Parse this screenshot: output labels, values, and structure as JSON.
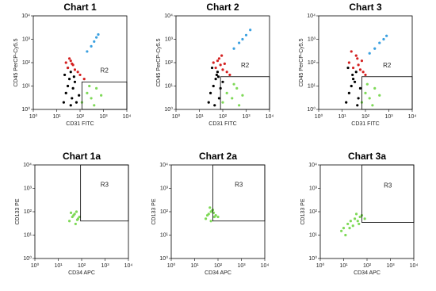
{
  "chart_data": [
    {
      "type": "scatter",
      "title": "Chart 1",
      "x_label": "CD31 FITC",
      "y_label": "CD45 PerCP-Cy5.5",
      "log_scale": true,
      "xlim": [
        1,
        10000
      ],
      "ylim": [
        1,
        10000
      ],
      "xticks": [
        {
          "value": 1,
          "label": "10⁰"
        },
        {
          "value": 10,
          "label": "10¹"
        },
        {
          "value": 100,
          "label": "10²"
        },
        {
          "value": 1000,
          "label": "10³"
        },
        {
          "value": 10000,
          "label": "10⁴"
        }
      ],
      "yticks": [
        {
          "value": 1,
          "label": "10⁰"
        },
        {
          "value": 10,
          "label": "10¹"
        },
        {
          "value": 100,
          "label": "10²"
        },
        {
          "value": 1000,
          "label": "10³"
        },
        {
          "value": 10000,
          "label": "10⁴"
        }
      ],
      "gate": {
        "label": "R2",
        "xlim": [
          120,
          10000
        ],
        "ylim": [
          1,
          15
        ]
      },
      "series": [
        {
          "color": "#000000",
          "x": [
            20,
            25,
            30,
            35,
            40,
            45,
            50,
            60,
            70,
            90,
            30,
            40,
            22,
            55
          ],
          "values": [
            2,
            5,
            10,
            20,
            40,
            3,
            8,
            15,
            2,
            4,
            60,
            1.5,
            30,
            25
          ]
        },
        {
          "color": "#d42020",
          "x": [
            25,
            30,
            40,
            50,
            60,
            80,
            100,
            150,
            35,
            45
          ],
          "values": [
            100,
            60,
            120,
            80,
            50,
            40,
            30,
            20,
            150,
            90
          ]
        },
        {
          "color": "#3aa0e0",
          "x": [
            200,
            300,
            400,
            500,
            600
          ],
          "values": [
            300,
            500,
            800,
            1200,
            1600
          ]
        },
        {
          "color": "#7ed957",
          "x": [
            120,
            200,
            300,
            500,
            800,
            250,
            400
          ],
          "values": [
            2,
            5,
            3,
            8,
            4,
            10,
            1.5
          ]
        }
      ]
    },
    {
      "type": "scatter",
      "title": "Chart 2",
      "x_label": "CD31 FITC",
      "y_label": "CD45 PerCP-Cy5.5",
      "log_scale": true,
      "xlim": [
        1,
        10000
      ],
      "ylim": [
        1,
        10000
      ],
      "xticks": [
        {
          "value": 1,
          "label": "10⁰"
        },
        {
          "value": 10,
          "label": "10¹"
        },
        {
          "value": 100,
          "label": "10²"
        },
        {
          "value": 1000,
          "label": "10³"
        },
        {
          "value": 10000,
          "label": "10⁴"
        }
      ],
      "yticks": [
        {
          "value": 1,
          "label": "10⁰"
        },
        {
          "value": 10,
          "label": "10¹"
        },
        {
          "value": 100,
          "label": "10²"
        },
        {
          "value": 1000,
          "label": "10³"
        },
        {
          "value": 10000,
          "label": "10⁴"
        }
      ],
      "gate": {
        "label": "R2",
        "xlim": [
          80,
          10000
        ],
        "ylim": [
          1,
          25
        ]
      },
      "series": [
        {
          "color": "#000000",
          "x": [
            25,
            30,
            40,
            50,
            60,
            70,
            80,
            100,
            35,
            45,
            55,
            65
          ],
          "values": [
            2,
            5,
            10,
            20,
            40,
            3,
            8,
            15,
            60,
            1.5,
            30,
            25
          ]
        },
        {
          "color": "#d42020",
          "x": [
            40,
            50,
            60,
            80,
            100,
            150,
            200,
            70,
            90,
            120
          ],
          "values": [
            100,
            60,
            120,
            80,
            50,
            40,
            30,
            150,
            200,
            90
          ]
        },
        {
          "color": "#3aa0e0",
          "x": [
            300,
            500,
            700,
            1000,
            1500
          ],
          "values": [
            400,
            700,
            1000,
            1500,
            2500
          ]
        },
        {
          "color": "#7ed957",
          "x": [
            100,
            150,
            250,
            400,
            700,
            300,
            500
          ],
          "values": [
            2,
            5,
            3,
            8,
            4,
            12,
            1.5
          ]
        }
      ]
    },
    {
      "type": "scatter",
      "title": "Chart 3",
      "x_label": "CD31 FITC",
      "y_label": "CD45 PerCP-Cy5.5",
      "log_scale": true,
      "xlim": [
        1,
        10000
      ],
      "ylim": [
        1,
        10000
      ],
      "xticks": [
        {
          "value": 1,
          "label": "10⁰"
        },
        {
          "value": 10,
          "label": "10¹"
        },
        {
          "value": 100,
          "label": "10²"
        },
        {
          "value": 1000,
          "label": "10³"
        },
        {
          "value": 10000,
          "label": "10⁴"
        }
      ],
      "yticks": [
        {
          "value": 1,
          "label": "10⁰"
        },
        {
          "value": 10,
          "label": "10¹"
        },
        {
          "value": 100,
          "label": "10²"
        },
        {
          "value": 1000,
          "label": "10³"
        },
        {
          "value": 10000,
          "label": "10⁴"
        }
      ],
      "gate": {
        "label": "R2",
        "xlim": [
          70,
          10000
        ],
        "ylim": [
          1,
          25
        ]
      },
      "series": [
        {
          "color": "#000000",
          "x": [
            15,
            20,
            25,
            30,
            40,
            50,
            60,
            18,
            35,
            45,
            28
          ],
          "values": [
            2,
            5,
            10,
            20,
            40,
            3,
            8,
            60,
            15,
            1.5,
            30
          ]
        },
        {
          "color": "#d42020",
          "x": [
            20,
            30,
            40,
            50,
            60,
            80,
            100,
            25,
            45,
            70
          ],
          "values": [
            100,
            60,
            200,
            80,
            50,
            40,
            30,
            300,
            150,
            120
          ]
        },
        {
          "color": "#3aa0e0",
          "x": [
            150,
            250,
            400,
            600,
            800
          ],
          "values": [
            250,
            400,
            700,
            1000,
            1400
          ]
        },
        {
          "color": "#7ed957",
          "x": [
            70,
            100,
            150,
            250,
            400,
            120,
            200
          ],
          "values": [
            2,
            5,
            3,
            8,
            4,
            12,
            1.5
          ]
        }
      ]
    },
    {
      "type": "scatter",
      "title": "Chart 1a",
      "x_label": "CD34 APC",
      "y_label": "CD133 PE",
      "log_scale": true,
      "xlim": [
        1,
        10000
      ],
      "ylim": [
        1,
        10000
      ],
      "xticks": [
        {
          "value": 1,
          "label": "10⁰"
        },
        {
          "value": 10,
          "label": "10¹"
        },
        {
          "value": 100,
          "label": "10²"
        },
        {
          "value": 1000,
          "label": "10³"
        },
        {
          "value": 10000,
          "label": "10⁴"
        }
      ],
      "yticks": [
        {
          "value": 1,
          "label": "10⁰"
        },
        {
          "value": 10,
          "label": "10¹"
        },
        {
          "value": 100,
          "label": "10²"
        },
        {
          "value": 1000,
          "label": "10³"
        },
        {
          "value": 10000,
          "label": "10⁴"
        }
      ],
      "gate": {
        "label": "R3",
        "xlim": [
          90,
          10000
        ],
        "ylim": [
          40,
          10000
        ]
      },
      "series": [
        {
          "color": "#7ed957",
          "x": [
            30,
            40,
            50,
            60,
            70,
            45,
            55,
            35,
            65,
            80
          ],
          "values": [
            40,
            60,
            80,
            100,
            50,
            70,
            30,
            90,
            45,
            60
          ]
        }
      ]
    },
    {
      "type": "scatter",
      "title": "Chart 2a",
      "x_label": "CD34 APC",
      "y_label": "CD133 PE",
      "log_scale": true,
      "xlim": [
        1,
        10000
      ],
      "ylim": [
        1,
        10000
      ],
      "xticks": [
        {
          "value": 1,
          "label": "10⁰"
        },
        {
          "value": 10,
          "label": "10¹"
        },
        {
          "value": 100,
          "label": "10²"
        },
        {
          "value": 1000,
          "label": "10³"
        },
        {
          "value": 10000,
          "label": "10⁴"
        }
      ],
      "yticks": [
        {
          "value": 1,
          "label": "10⁰"
        },
        {
          "value": 10,
          "label": "10¹"
        },
        {
          "value": 100,
          "label": "10²"
        },
        {
          "value": 1000,
          "label": "10³"
        },
        {
          "value": 10000,
          "label": "10⁴"
        }
      ],
      "gate": {
        "label": "R3",
        "xlim": [
          60,
          10000
        ],
        "ylim": [
          40,
          10000
        ]
      },
      "series": [
        {
          "color": "#7ed957",
          "x": [
            30,
            40,
            50,
            60,
            70,
            80,
            50,
            45,
            65,
            100,
            35,
            55
          ],
          "values": [
            50,
            80,
            100,
            120,
            60,
            70,
            40,
            150,
            90,
            60,
            70,
            110
          ]
        }
      ]
    },
    {
      "type": "scatter",
      "title": "Chart 3a",
      "x_label": "CD34 APC",
      "y_label": "CD133 PE",
      "log_scale": true,
      "xlim": [
        1,
        10000
      ],
      "ylim": [
        1,
        10000
      ],
      "xticks": [
        {
          "value": 1,
          "label": "10⁰"
        },
        {
          "value": 10,
          "label": "10¹"
        },
        {
          "value": 100,
          "label": "10²"
        },
        {
          "value": 1000,
          "label": "10³"
        },
        {
          "value": 10000,
          "label": "10⁴"
        }
      ],
      "yticks": [
        {
          "value": 1,
          "label": "10⁰"
        },
        {
          "value": 10,
          "label": "10¹"
        },
        {
          "value": 100,
          "label": "10²"
        },
        {
          "value": 1000,
          "label": "10³"
        },
        {
          "value": 10000,
          "label": "10⁴"
        }
      ],
      "gate": {
        "label": "R3",
        "xlim": [
          60,
          10000
        ],
        "ylim": [
          35,
          10000
        ]
      },
      "series": [
        {
          "color": "#7ed957",
          "x": [
            8,
            10,
            15,
            20,
            30,
            40,
            50,
            60,
            80,
            25,
            35,
            12,
            18,
            45
          ],
          "values": [
            15,
            20,
            30,
            40,
            50,
            40,
            60,
            70,
            50,
            25,
            80,
            10,
            20,
            30
          ]
        }
      ]
    }
  ]
}
